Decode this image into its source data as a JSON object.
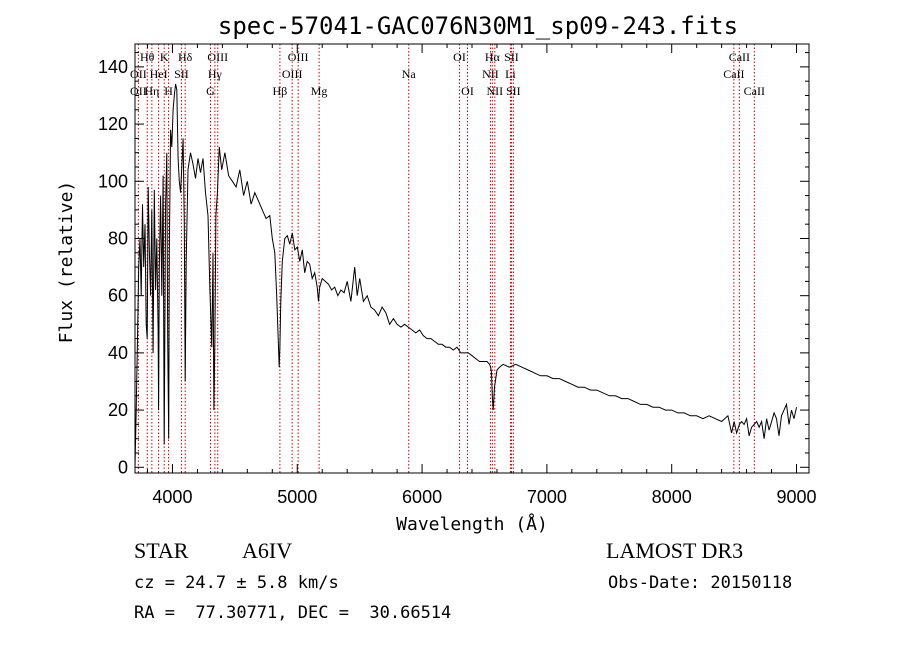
{
  "chart_data": {
    "type": "line",
    "title": "spec-57041-GAC076N30M1_sp09-243.fits",
    "xlabel": "Wavelength (Å)",
    "ylabel": "Flux (relative)",
    "xlim": [
      3700,
      9100
    ],
    "ylim": [
      -2,
      148
    ],
    "xticks": [
      4000,
      5000,
      6000,
      7000,
      8000,
      9000
    ],
    "xtick_labels": [
      "4000",
      "5000",
      "6000",
      "7000",
      "8000",
      "9000"
    ],
    "yticks": [
      0,
      20,
      40,
      60,
      80,
      100,
      120,
      140
    ],
    "ytick_labels": [
      "0",
      "20",
      "40",
      "60",
      "80",
      "100",
      "120",
      "140"
    ],
    "series": [
      {
        "name": "spectrum",
        "x": [
          3700,
          3710,
          3720,
          3730,
          3740,
          3750,
          3760,
          3770,
          3780,
          3790,
          3798,
          3806,
          3815,
          3825,
          3835,
          3845,
          3855,
          3865,
          3875,
          3885,
          3889,
          3895,
          3905,
          3915,
          3925,
          3934,
          3945,
          3955,
          3962,
          3970,
          3975,
          3985,
          3995,
          4005,
          4015,
          4025,
          4035,
          4045,
          4055,
          4065,
          4075,
          4085,
          4095,
          4102,
          4110,
          4125,
          4145,
          4165,
          4185,
          4205,
          4225,
          4245,
          4265,
          4285,
          4300,
          4315,
          4325,
          4332,
          4340,
          4348,
          4360,
          4375,
          4395,
          4420,
          4450,
          4480,
          4510,
          4540,
          4570,
          4600,
          4630,
          4660,
          4690,
          4720,
          4750,
          4780,
          4800,
          4820,
          4835,
          4845,
          4855,
          4861,
          4868,
          4880,
          4900,
          4920,
          4940,
          4960,
          4980,
          5000,
          5020,
          5040,
          5060,
          5080,
          5100,
          5120,
          5140,
          5160,
          5170,
          5180,
          5200,
          5225,
          5250,
          5275,
          5300,
          5325,
          5350,
          5375,
          5400,
          5430,
          5460,
          5480,
          5500,
          5530,
          5560,
          5590,
          5620,
          5650,
          5680,
          5710,
          5740,
          5770,
          5800,
          5830,
          5860,
          5890,
          5920,
          5950,
          5980,
          6010,
          6040,
          6070,
          6100,
          6130,
          6160,
          6190,
          6220,
          6250,
          6280,
          6310,
          6340,
          6370,
          6400,
          6430,
          6460,
          6490,
          6520,
          6540,
          6550,
          6556,
          6563,
          6570,
          6580,
          6600,
          6620,
          6650,
          6700,
          6750,
          6800,
          6850,
          6900,
          6950,
          7000,
          7050,
          7100,
          7150,
          7200,
          7250,
          7300,
          7350,
          7400,
          7450,
          7500,
          7550,
          7600,
          7650,
          7700,
          7750,
          7800,
          7850,
          7900,
          7950,
          8000,
          8050,
          8100,
          8150,
          8200,
          8250,
          8300,
          8350,
          8400,
          8450,
          8480,
          8500,
          8520,
          8542,
          8560,
          8580,
          8600,
          8620,
          8640,
          8662,
          8680,
          8700,
          8720,
          8740,
          8760,
          8780,
          8800,
          8820,
          8840,
          8860,
          8880,
          8900,
          8920,
          8940,
          8960,
          8980,
          9000
        ],
        "y": [
          0,
          20,
          45,
          70,
          80,
          60,
          92,
          70,
          85,
          50,
          45,
          98,
          75,
          60,
          90,
          40,
          97,
          62,
          80,
          48,
          20,
          70,
          95,
          60,
          102,
          8,
          92,
          110,
          45,
          10,
          75,
          118,
          112,
          125,
          130,
          134,
          132,
          108,
          100,
          96,
          105,
          115,
          85,
          30,
          72,
          104,
          110,
          106,
          101,
          108,
          103,
          108,
          96,
          88,
          62,
          42,
          75,
          20,
          45,
          88,
          96,
          112,
          104,
          110,
          102,
          100,
          98,
          104,
          95,
          100,
          92,
          96,
          93,
          90,
          87,
          88,
          80,
          75,
          60,
          48,
          35,
          42,
          58,
          72,
          80,
          81,
          78,
          82,
          76,
          77,
          72,
          76,
          68,
          72,
          71,
          66,
          68,
          63,
          58,
          63,
          66,
          65,
          64,
          62,
          63,
          60,
          62,
          61,
          65,
          58,
          70,
          60,
          66,
          58,
          60,
          56,
          55,
          53,
          56,
          54,
          50,
          52,
          50,
          49,
          50,
          49,
          48,
          47,
          48,
          46,
          45,
          45,
          44,
          43,
          43,
          42,
          42,
          41,
          42,
          40,
          40,
          40,
          39,
          38,
          37,
          37,
          37,
          36,
          35,
          33,
          25,
          20,
          28,
          34,
          35,
          36,
          35,
          36,
          35,
          34,
          33,
          32,
          32,
          31,
          31,
          30,
          29,
          28,
          28,
          27,
          27,
          26,
          25,
          25,
          24,
          24,
          23,
          22,
          22,
          21,
          21,
          20,
          20,
          19,
          19,
          18,
          18,
          17,
          18,
          17,
          16,
          18,
          12,
          16,
          12,
          15,
          16,
          15,
          17,
          11,
          14,
          15,
          16,
          14,
          16,
          10,
          17,
          13,
          16,
          19,
          17,
          11,
          18,
          20,
          22,
          15,
          20,
          17,
          21
        ]
      }
    ],
    "lines": [
      {
        "name": "OII",
        "x": 3727
      },
      {
        "name": "Hθ",
        "x": 3798
      },
      {
        "name": "Hη",
        "x": 3835
      },
      {
        "name": "HeI",
        "x": 3889
      },
      {
        "name": "K",
        "x": 3934
      },
      {
        "name": "H",
        "x": 3969
      },
      {
        "name": "SII",
        "x": 4072
      },
      {
        "name": "Hδ",
        "x": 4102
      },
      {
        "name": "G",
        "x": 4305
      },
      {
        "name": "Hγ",
        "x": 4340
      },
      {
        "name": "OIII",
        "x": 4363
      },
      {
        "name": "Hβ",
        "x": 4861
      },
      {
        "name": "OIII",
        "x": 4959
      },
      {
        "name": "OIII",
        "x": 5007
      },
      {
        "name": "Mg",
        "x": 5175
      },
      {
        "name": "Na",
        "x": 5893
      },
      {
        "name": "OI",
        "x": 6300
      },
      {
        "name": "OI",
        "x": 6364
      },
      {
        "name": "NII",
        "x": 6548
      },
      {
        "name": "Hα",
        "x": 6563
      },
      {
        "name": "NII",
        "x": 6583
      },
      {
        "name": "Li",
        "x": 6708
      },
      {
        "name": "SII",
        "x": 6716
      },
      {
        "name": "SII",
        "x": 6731
      },
      {
        "name": "CaII",
        "x": 8498
      },
      {
        "name": "CaII",
        "x": 8542
      },
      {
        "name": "CaII",
        "x": 8662
      }
    ],
    "line_labels": [
      {
        "text": "Hθ",
        "x": 3798,
        "row": 1
      },
      {
        "text": "K",
        "x": 3934,
        "row": 1
      },
      {
        "text": "Hδ",
        "x": 4102,
        "row": 1
      },
      {
        "text": "OIII",
        "x": 4363,
        "row": 1
      },
      {
        "text": "OIII",
        "x": 5007,
        "row": 1
      },
      {
        "text": "OI",
        "x": 6300,
        "row": 1
      },
      {
        "text": "Hα",
        "x": 6563,
        "row": 1
      },
      {
        "text": "SII",
        "x": 6716,
        "row": 1
      },
      {
        "text": "CaII",
        "x": 8542,
        "row": 1
      },
      {
        "text": "OII",
        "x": 3727,
        "row": 2
      },
      {
        "text": "HeI",
        "x": 3889,
        "row": 2
      },
      {
        "text": "SII",
        "x": 4072,
        "row": 2
      },
      {
        "text": "Hγ",
        "x": 4340,
        "row": 2
      },
      {
        "text": "OIII",
        "x": 4959,
        "row": 2
      },
      {
        "text": "Na",
        "x": 5893,
        "row": 2
      },
      {
        "text": "NII",
        "x": 6548,
        "row": 2
      },
      {
        "text": "Li",
        "x": 6708,
        "row": 2
      },
      {
        "text": "CaII",
        "x": 8498,
        "row": 2
      },
      {
        "text": "OII",
        "x": 3727,
        "row": 3
      },
      {
        "text": "Hη",
        "x": 3835,
        "row": 3
      },
      {
        "text": "H",
        "x": 3969,
        "row": 3
      },
      {
        "text": "G",
        "x": 4305,
        "row": 3
      },
      {
        "text": "Hβ",
        "x": 4861,
        "row": 3
      },
      {
        "text": "Mg",
        "x": 5175,
        "row": 3
      },
      {
        "text": "OI",
        "x": 6364,
        "row": 3
      },
      {
        "text": "NII",
        "x": 6583,
        "row": 3
      },
      {
        "text": "SII",
        "x": 6731,
        "row": 3
      },
      {
        "text": "CaII",
        "x": 8662,
        "row": 3
      }
    ],
    "grid": false,
    "colors": {
      "spectrum": "#000000",
      "lines": "#cc0000",
      "axes": "#000000"
    }
  },
  "info": {
    "object_class": "STAR",
    "subclass": "A6IV",
    "survey": "LAMOST DR3",
    "cz": "cz = 24.7 ± 5.8 km/s",
    "obs_date": "Obs-Date: 20150118",
    "radec": "RA =  77.30771, DEC =  30.66514"
  }
}
